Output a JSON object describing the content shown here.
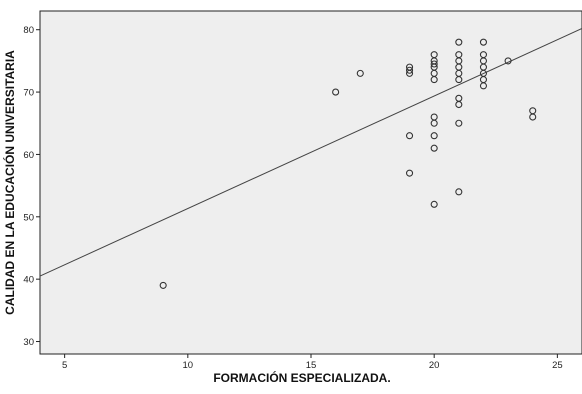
{
  "chart_data": {
    "type": "scatter",
    "title": "",
    "xlabel": "FORMACIÓN ESPECIALIZADA.",
    "ylabel": "CALIDAD EN LA EDUCACIÓN UNIVERSITARIA",
    "xlim": [
      4,
      26
    ],
    "ylim": [
      28,
      83
    ],
    "x_ticks": [
      5,
      10,
      15,
      20,
      25
    ],
    "y_ticks": [
      30,
      40,
      50,
      60,
      70,
      80
    ],
    "grid": false,
    "legend": "none",
    "plot_background": "#eeeeee",
    "marker_color": "#333333",
    "fit_line": {
      "x": [
        4,
        26
      ],
      "y": [
        40.5,
        80.2
      ]
    },
    "points": [
      {
        "x": 9,
        "y": 39
      },
      {
        "x": 16,
        "y": 70
      },
      {
        "x": 17,
        "y": 73
      },
      {
        "x": 19,
        "y": 74
      },
      {
        "x": 19,
        "y": 73.5
      },
      {
        "x": 19,
        "y": 73
      },
      {
        "x": 19,
        "y": 63
      },
      {
        "x": 19,
        "y": 57
      },
      {
        "x": 20,
        "y": 76
      },
      {
        "x": 20,
        "y": 75
      },
      {
        "x": 20,
        "y": 74.5
      },
      {
        "x": 20,
        "y": 74
      },
      {
        "x": 20,
        "y": 73
      },
      {
        "x": 20,
        "y": 72
      },
      {
        "x": 20,
        "y": 66
      },
      {
        "x": 20,
        "y": 65
      },
      {
        "x": 20,
        "y": 63
      },
      {
        "x": 20,
        "y": 61
      },
      {
        "x": 20,
        "y": 52
      },
      {
        "x": 21,
        "y": 78
      },
      {
        "x": 21,
        "y": 76
      },
      {
        "x": 21,
        "y": 75
      },
      {
        "x": 21,
        "y": 74
      },
      {
        "x": 21,
        "y": 73
      },
      {
        "x": 21,
        "y": 72
      },
      {
        "x": 21,
        "y": 69
      },
      {
        "x": 21,
        "y": 68
      },
      {
        "x": 21,
        "y": 65
      },
      {
        "x": 21,
        "y": 54
      },
      {
        "x": 22,
        "y": 78
      },
      {
        "x": 22,
        "y": 76
      },
      {
        "x": 22,
        "y": 75
      },
      {
        "x": 22,
        "y": 74
      },
      {
        "x": 22,
        "y": 73
      },
      {
        "x": 22,
        "y": 72
      },
      {
        "x": 22,
        "y": 71
      },
      {
        "x": 23,
        "y": 75
      },
      {
        "x": 24,
        "y": 67
      },
      {
        "x": 24,
        "y": 66
      }
    ]
  }
}
